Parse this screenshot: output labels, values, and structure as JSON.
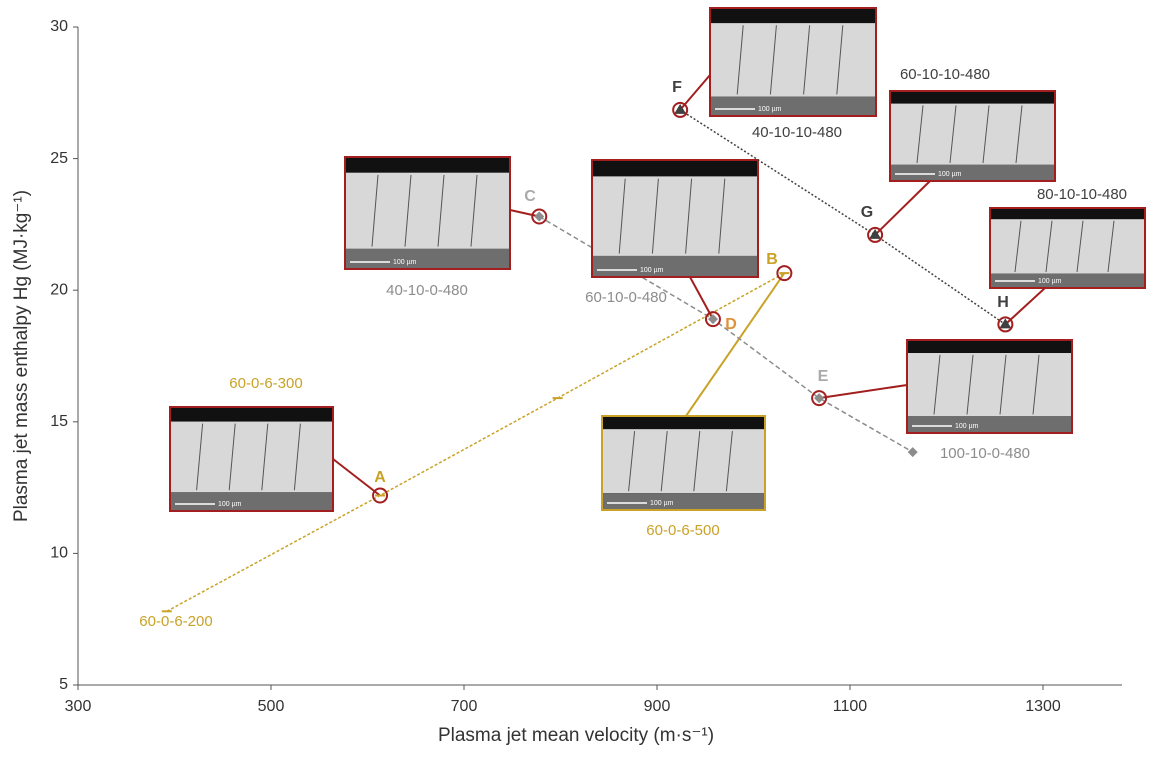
{
  "chart_data": {
    "type": "line",
    "xlabel": "Plasma jet mean velocity (m·s⁻¹)",
    "ylabel": "Plasma jet mass enthalpy Hg (MJ·kg⁻¹)",
    "xlim": [
      300,
      1380
    ],
    "xticks": [
      300,
      500,
      700,
      900,
      1100,
      1300
    ],
    "ylim": [
      5,
      30
    ],
    "yticks": [
      5,
      10,
      15,
      20,
      25,
      30
    ],
    "scale_bar": "100 µm",
    "series": [
      {
        "color": "#c9a227",
        "dash": "3,2",
        "x": [
          392,
          613,
          797,
          1032
        ],
        "values": [
          7.8,
          12.2,
          15.9,
          20.65
        ],
        "point_labels": [
          null,
          "A",
          null,
          "B"
        ],
        "condition_labels": [
          "60-0-6-200",
          "60-0-6-300",
          null,
          "60-0-6-500"
        ]
      },
      {
        "color": "#8c8c8c",
        "dash": "5,3",
        "x": [
          778,
          958,
          1068,
          1165
        ],
        "values": [
          22.8,
          18.9,
          15.9,
          13.85
        ],
        "point_labels": [
          "C",
          "D",
          "E",
          null
        ],
        "condition_labels": [
          "40-10-0-480",
          "60-10-0-480",
          null,
          "100-10-0-480"
        ]
      },
      {
        "color": "#404040",
        "dash": "2,2",
        "x": [
          924,
          1126,
          1261
        ],
        "values": [
          26.85,
          22.1,
          18.7
        ],
        "point_labels": [
          "F",
          "G",
          "H"
        ],
        "condition_labels": [
          "40-10-10-480",
          "60-10-10-480",
          "80-10-10-480"
        ]
      }
    ]
  }
}
